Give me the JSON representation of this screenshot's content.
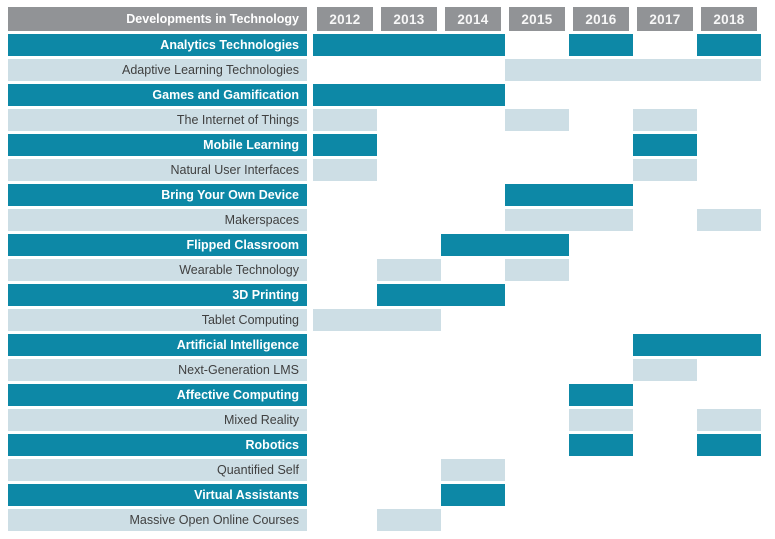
{
  "header": {
    "title": "Developments in Technology",
    "years": [
      "2012",
      "2013",
      "2014",
      "2015",
      "2016",
      "2017",
      "2018"
    ]
  },
  "colors": {
    "teal": "#0d88a6",
    "light_blue": "#cddee5",
    "header_gray": "#919396",
    "dark_text": "#404040",
    "background": "#ffffff"
  },
  "chart_data": {
    "type": "table",
    "title": "Developments in Technology",
    "subtitle": "",
    "columns": [
      "2012",
      "2013",
      "2014",
      "2015",
      "2016",
      "2017",
      "2018"
    ],
    "x_range": [
      2012,
      2018
    ],
    "grid": false,
    "legend": "none",
    "row_styles_note": "teal = dark highlighted technology rows (white bold label, teal bars); light = light blue rows (dark label, light blue bars)",
    "rows": [
      {
        "label": "Analytics Technologies",
        "style": "teal",
        "bars": [
          {
            "from": 2012,
            "to": 2014
          },
          {
            "from": 2016,
            "to": 2016
          },
          {
            "from": 2018,
            "to": 2018
          }
        ]
      },
      {
        "label": "Adaptive Learning Technologies",
        "style": "light",
        "bars": [
          {
            "from": 2015,
            "to": 2018
          }
        ]
      },
      {
        "label": "Games and Gamification",
        "style": "teal",
        "bars": [
          {
            "from": 2012,
            "to": 2014
          }
        ]
      },
      {
        "label": "The Internet of Things",
        "style": "light",
        "bars": [
          {
            "from": 2012,
            "to": 2012
          },
          {
            "from": 2015,
            "to": 2015
          },
          {
            "from": 2017,
            "to": 2017
          }
        ]
      },
      {
        "label": "Mobile Learning",
        "style": "teal",
        "bars": [
          {
            "from": 2012,
            "to": 2012
          },
          {
            "from": 2017,
            "to": 2017
          }
        ]
      },
      {
        "label": "Natural User Interfaces",
        "style": "light",
        "bars": [
          {
            "from": 2012,
            "to": 2012
          },
          {
            "from": 2017,
            "to": 2017
          }
        ]
      },
      {
        "label": "Bring Your Own Device",
        "style": "teal",
        "bars": [
          {
            "from": 2015,
            "to": 2016
          }
        ]
      },
      {
        "label": "Makerspaces",
        "style": "light",
        "bars": [
          {
            "from": 2015,
            "to": 2016
          },
          {
            "from": 2018,
            "to": 2018
          }
        ]
      },
      {
        "label": "Flipped Classroom",
        "style": "teal",
        "bars": [
          {
            "from": 2014,
            "to": 2015
          }
        ]
      },
      {
        "label": "Wearable Technology",
        "style": "light",
        "bars": [
          {
            "from": 2013,
            "to": 2013
          },
          {
            "from": 2015,
            "to": 2015
          }
        ]
      },
      {
        "label": "3D Printing",
        "style": "teal",
        "bars": [
          {
            "from": 2013,
            "to": 2014
          }
        ]
      },
      {
        "label": "Tablet Computing",
        "style": "light",
        "bars": [
          {
            "from": 2012,
            "to": 2013
          }
        ]
      },
      {
        "label": "Artificial Intelligence",
        "style": "teal",
        "bars": [
          {
            "from": 2017,
            "to": 2018
          }
        ]
      },
      {
        "label": "Next-Generation LMS",
        "style": "light",
        "bars": [
          {
            "from": 2017,
            "to": 2017
          }
        ]
      },
      {
        "label": "Affective Computing",
        "style": "teal",
        "bars": [
          {
            "from": 2016,
            "to": 2016
          }
        ]
      },
      {
        "label": "Mixed Reality",
        "style": "light",
        "bars": [
          {
            "from": 2016,
            "to": 2016
          },
          {
            "from": 2018,
            "to": 2018
          }
        ]
      },
      {
        "label": "Robotics",
        "style": "teal",
        "bars": [
          {
            "from": 2016,
            "to": 2016
          },
          {
            "from": 2018,
            "to": 2018
          }
        ]
      },
      {
        "label": "Quantified Self",
        "style": "light",
        "bars": [
          {
            "from": 2014,
            "to": 2014
          }
        ]
      },
      {
        "label": "Virtual Assistants",
        "style": "teal",
        "bars": [
          {
            "from": 2014,
            "to": 2014
          }
        ]
      },
      {
        "label": "Massive Open Online Courses",
        "style": "light",
        "bars": [
          {
            "from": 2013,
            "to": 2013
          }
        ]
      }
    ]
  }
}
